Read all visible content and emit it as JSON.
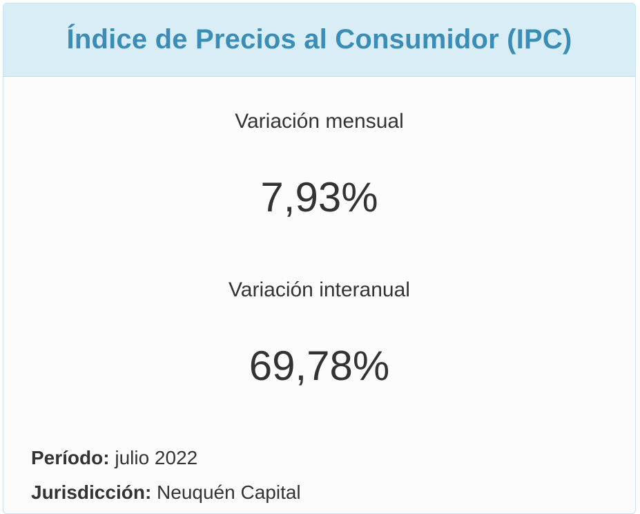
{
  "header": {
    "title": "Índice de Precios al Consumidor (IPC)"
  },
  "monthly": {
    "label": "Variación mensual",
    "value": "7,93%"
  },
  "yearly": {
    "label": "Variación interanual",
    "value": "69,78%"
  },
  "meta": {
    "period_label": "Período:",
    "period_value": "julio 2022",
    "jurisdiction_label": "Jurisdicción:",
    "jurisdiction_value": "Neuquén Capital"
  },
  "colors": {
    "header_bg": "#d9edf7",
    "title_color": "#3b8db5",
    "text_color": "#333333"
  }
}
